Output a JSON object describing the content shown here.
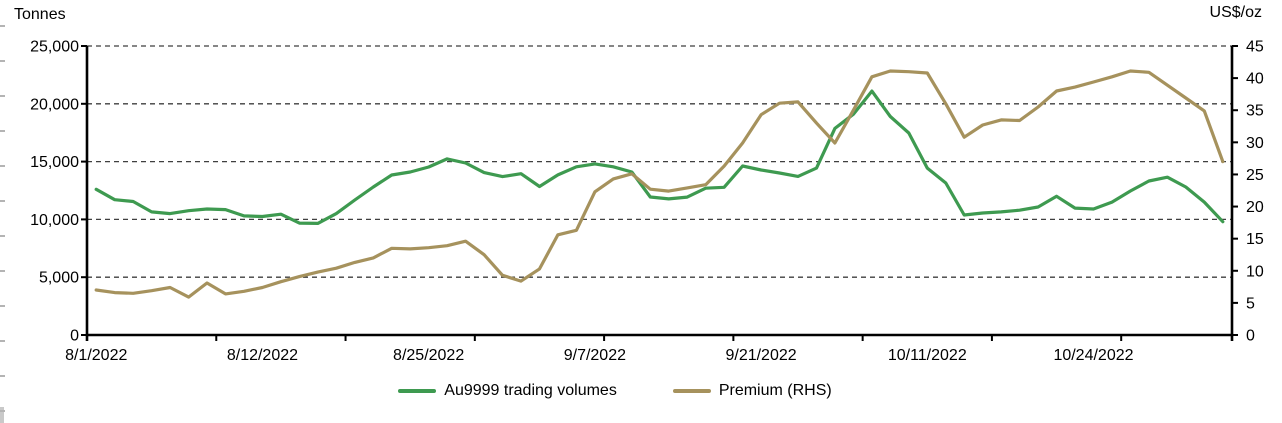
{
  "chart": {
    "left_axis_title": "Tonnes",
    "right_axis_title": "US$/oz",
    "left_axis": {
      "ticks": [
        "25,000",
        "20,000",
        "15,000",
        "10,000",
        "5,000",
        "0"
      ]
    },
    "right_axis": {
      "ticks": [
        "45",
        "40",
        "35",
        "30",
        "25",
        "20",
        "15",
        "10",
        "5",
        "0"
      ]
    },
    "legend": [
      {
        "label": "Au9999 trading volumes",
        "color": "#3e9a50"
      },
      {
        "label": "Premium (RHS)",
        "color": "#a6925d"
      }
    ],
    "grid_color": "#3f3f3f",
    "axis_color": "#000000"
  },
  "chart_data": {
    "type": "line",
    "title": "",
    "xlabel": "",
    "ylabel_left": "Tonnes",
    "ylabel_right": "US$/oz",
    "left_ylim": [
      0,
      25000
    ],
    "left_tick_step": 5000,
    "right_ylim": [
      0,
      45
    ],
    "right_tick_step": 5,
    "grid": "horizontal-dashed",
    "legend_position": "bottom",
    "x": [
      "8/1/2022",
      "8/2/2022",
      "8/3/2022",
      "8/4/2022",
      "8/5/2022",
      "8/8/2022",
      "8/9/2022",
      "8/10/2022",
      "8/11/2022",
      "8/12/2022",
      "8/15/2022",
      "8/16/2022",
      "8/17/2022",
      "8/18/2022",
      "8/19/2022",
      "8/22/2022",
      "8/23/2022",
      "8/24/2022",
      "8/25/2022",
      "8/26/2022",
      "8/29/2022",
      "8/30/2022",
      "8/31/2022",
      "9/1/2022",
      "9/2/2022",
      "9/5/2022",
      "9/6/2022",
      "9/7/2022",
      "9/8/2022",
      "9/9/2022",
      "9/13/2022",
      "9/14/2022",
      "9/15/2022",
      "9/16/2022",
      "9/19/2022",
      "9/20/2022",
      "9/21/2022",
      "9/22/2022",
      "9/23/2022",
      "9/26/2022",
      "9/27/2022",
      "9/28/2022",
      "9/29/2022",
      "9/30/2022",
      "10/10/2022",
      "10/11/2022",
      "10/12/2022",
      "10/13/2022",
      "10/14/2022",
      "10/17/2022",
      "10/18/2022",
      "10/19/2022",
      "10/20/2022",
      "10/21/2022",
      "10/24/2022",
      "10/25/2022",
      "10/26/2022",
      "10/27/2022",
      "10/28/2022",
      "10/31/2022",
      "11/1/2022",
      "11/2/2022"
    ],
    "x_label_indices": [
      0,
      9,
      18,
      27,
      36,
      45,
      54
    ],
    "x_labels": [
      "8/1/2022",
      "8/12/2022",
      "8/25/2022",
      "9/7/2022",
      "9/21/2022",
      "10/11/2022",
      "10/24/2022"
    ],
    "x_minor_tick_every": 7,
    "series": [
      {
        "name": "Au9999 trading volumes",
        "axis": "left",
        "unit": "tonnes",
        "color": "#3e9a50",
        "values": [
          12600,
          11700,
          11550,
          10650,
          10500,
          10750,
          10900,
          10850,
          10300,
          10250,
          10450,
          9680,
          9650,
          10500,
          11680,
          12800,
          13840,
          14100,
          14530,
          15230,
          14880,
          14050,
          13700,
          13950,
          12850,
          13850,
          14550,
          14800,
          14550,
          14100,
          11940,
          11770,
          11930,
          12700,
          12780,
          14620,
          14270,
          14010,
          13720,
          14440,
          17870,
          19100,
          21100,
          18900,
          17470,
          14440,
          13150,
          10380,
          10550,
          10650,
          10800,
          11070,
          12000,
          10980,
          10900,
          11500,
          12460,
          13320,
          13650,
          12800,
          11500,
          9800
        ]
      },
      {
        "name": "Premium (RHS)",
        "axis": "right",
        "unit": "US$/oz",
        "color": "#a6925d",
        "values": [
          7.0,
          6.6,
          6.5,
          6.9,
          7.4,
          5.9,
          8.1,
          6.4,
          6.8,
          7.4,
          8.3,
          9.1,
          9.8,
          10.4,
          11.3,
          12.0,
          13.5,
          13.4,
          13.6,
          13.9,
          14.6,
          12.5,
          9.3,
          8.4,
          10.3,
          15.6,
          16.3,
          22.3,
          24.3,
          25.1,
          22.7,
          22.4,
          22.9,
          23.4,
          26.3,
          29.9,
          34.3,
          36.1,
          36.3,
          33.0,
          29.9,
          35.0,
          40.2,
          41.1,
          41.0,
          40.8,
          36.0,
          30.8,
          32.7,
          33.5,
          33.4,
          35.5,
          38.0,
          38.6,
          39.4,
          40.2,
          41.1,
          40.9,
          38.9,
          36.9,
          34.9,
          27.0
        ]
      }
    ]
  }
}
